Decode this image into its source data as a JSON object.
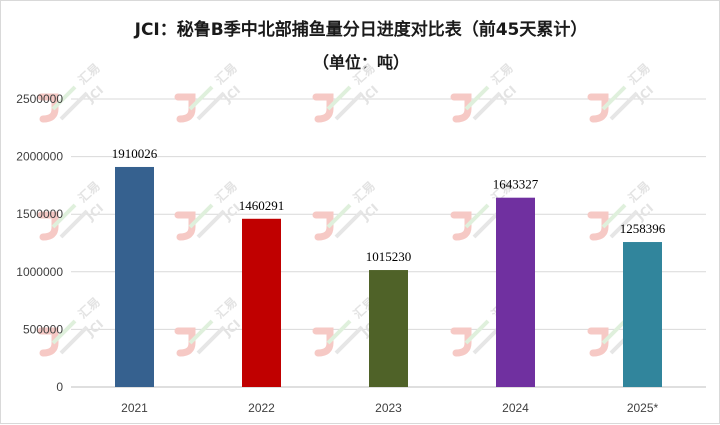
{
  "chart_data": {
    "type": "bar",
    "title": "JCI：秘鲁B季中北部捕鱼量分日进度对比表（前45天累计）",
    "subtitle": "（单位：吨）",
    "categories": [
      "2021",
      "2022",
      "2023",
      "2024",
      "2025*"
    ],
    "values": [
      1910026,
      1460291,
      1015230,
      1643327,
      1258396
    ],
    "data_labels": [
      "1910026",
      "1460291",
      "1015230",
      "1643327",
      "1258396"
    ],
    "bar_colors": [
      "#36618f",
      "#c00000",
      "#4f6228",
      "#7030a0",
      "#31859c"
    ],
    "ylim": [
      0,
      2500000
    ],
    "yticks": [
      "0",
      "500000",
      "1000000",
      "1500000",
      "2000000",
      "2500000"
    ],
    "ytick_values": [
      0,
      500000,
      1000000,
      1500000,
      2000000,
      2500000
    ],
    "grid": true,
    "xlabel": "",
    "ylabel": ""
  },
  "watermark": {
    "name": "汇易",
    "code": "JCI"
  }
}
